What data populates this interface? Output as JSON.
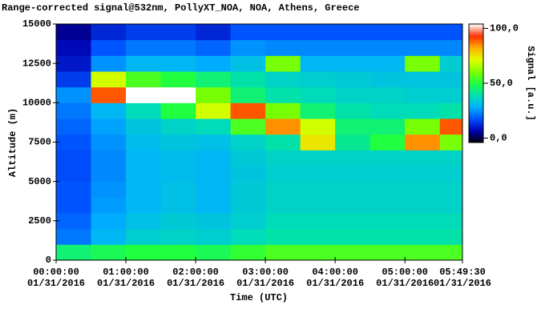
{
  "chart_data": {
    "type": "heatmap",
    "title": "Range-corrected signal@532nm, PollyXT_NOA, NOA, Athens, Greece",
    "xlabel": "Time (UTC)",
    "ylabel": "Altitude (m)",
    "colorbar_label": "Signal [a.u.]",
    "x_edges": [
      0,
      0.5,
      1,
      1.5,
      2,
      2.5,
      3,
      3.5,
      4,
      4.5,
      5,
      5.5,
      5.825
    ],
    "y_edges": [
      0,
      1000,
      2000,
      3000,
      4000,
      5000,
      6000,
      7000,
      8000,
      9000,
      10000,
      11000,
      12000,
      13000,
      14000,
      15000
    ],
    "z": [
      [
        45,
        48,
        50,
        50,
        48,
        52,
        55,
        55,
        55,
        55,
        55,
        55
      ],
      [
        22,
        30,
        35,
        36,
        35,
        38,
        40,
        40,
        40,
        40,
        40,
        40
      ],
      [
        20,
        28,
        32,
        34,
        33,
        35,
        38,
        38,
        38,
        38,
        38,
        38
      ],
      [
        18,
        26,
        30,
        32,
        30,
        34,
        36,
        36,
        36,
        36,
        36,
        36
      ],
      [
        18,
        25,
        30,
        32,
        30,
        34,
        36,
        36,
        36,
        36,
        36,
        36
      ],
      [
        17,
        24,
        30,
        31,
        30,
        33,
        35,
        35,
        35,
        35,
        35,
        35
      ],
      [
        17,
        24,
        30,
        31,
        30,
        34,
        36,
        36,
        36,
        36,
        36,
        36
      ],
      [
        18,
        25,
        31,
        33,
        32,
        36,
        40,
        75,
        42,
        50,
        85,
        60
      ],
      [
        20,
        27,
        33,
        36,
        38,
        55,
        85,
        70,
        45,
        45,
        60,
        90
      ],
      [
        22,
        30,
        38,
        50,
        70,
        90,
        60,
        45,
        40,
        38,
        38,
        40
      ],
      [
        25,
        90,
        105,
        105,
        60,
        45,
        40,
        38,
        36,
        36,
        35,
        35
      ],
      [
        15,
        70,
        55,
        50,
        45,
        40,
        36,
        35,
        34,
        33,
        33,
        33
      ],
      [
        10,
        25,
        30,
        30,
        28,
        32,
        60,
        30,
        30,
        30,
        60,
        35
      ],
      [
        8,
        18,
        22,
        22,
        20,
        25,
        24,
        24,
        24,
        24,
        24,
        24
      ],
      [
        5,
        12,
        15,
        15,
        12,
        18,
        18,
        18,
        18,
        18,
        18,
        18
      ]
    ],
    "xlim": [
      0,
      5.825
    ],
    "ylim": [
      0,
      15000
    ],
    "zlim": [
      -4,
      104
    ],
    "xticks": [
      {
        "value": 0,
        "label": "00:00:00\n01/31/2016"
      },
      {
        "value": 1,
        "label": "01:00:00\n01/31/2016"
      },
      {
        "value": 2,
        "label": "02:00:00\n01/31/2016"
      },
      {
        "value": 3,
        "label": "03:00:00\n01/31/2016"
      },
      {
        "value": 4,
        "label": "04:00:00\n01/31/2016"
      },
      {
        "value": 5,
        "label": "05:00:00\n01/31/2016"
      },
      {
        "value": 5.825,
        "label": "05:49:30\n01/31/2016"
      }
    ],
    "yticks": [
      0,
      2500,
      5000,
      7500,
      10000,
      12500,
      15000
    ],
    "zticks": [
      {
        "value": 0,
        "label": "0,0"
      },
      {
        "value": 50,
        "label": "50,0"
      },
      {
        "value": 100,
        "label": "100,0"
      }
    ],
    "colorscale": [
      "#000000",
      "#0000b0",
      "#0050ff",
      "#00b0ff",
      "#00e0b0",
      "#20ff40",
      "#80ff00",
      "#e0ff00",
      "#ffb000",
      "#ff3000",
      "#ffffff"
    ]
  }
}
